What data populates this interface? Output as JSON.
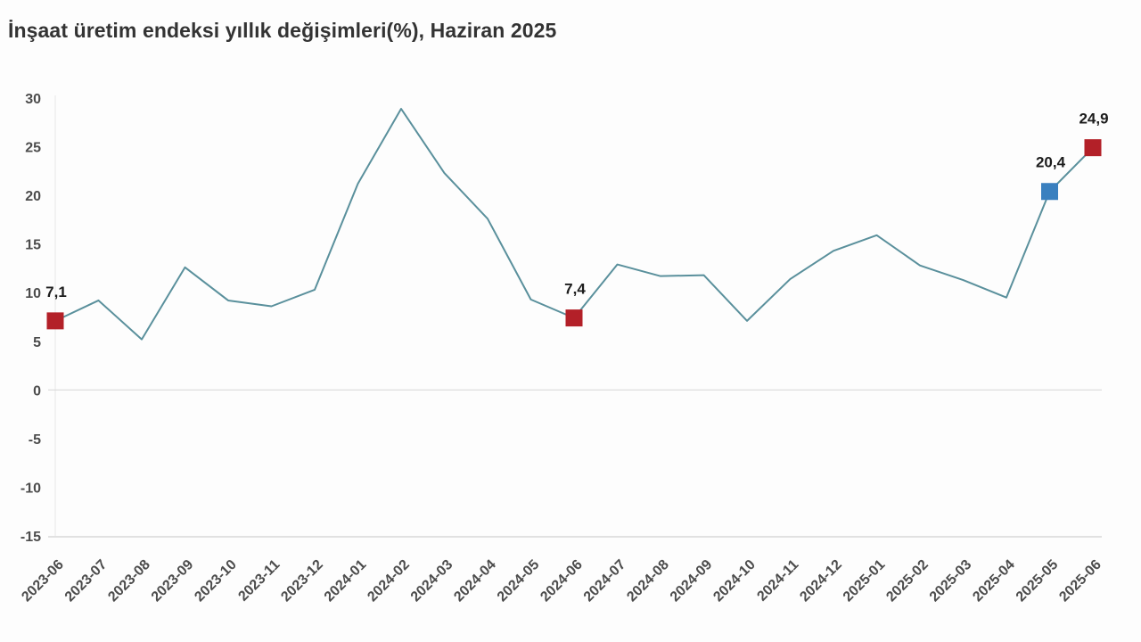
{
  "chart_data": {
    "type": "line",
    "title": "İnşaat üretim endeksi yıllık değişimleri(%), Haziran 2025",
    "xlabel": "",
    "ylabel": "",
    "x": [
      "2023-06",
      "2023-07",
      "2023-08",
      "2023-09",
      "2023-10",
      "2023-11",
      "2023-12",
      "2024-01",
      "2024-02",
      "2024-03",
      "2024-04",
      "2024-05",
      "2024-06",
      "2024-07",
      "2024-08",
      "2024-09",
      "2024-10",
      "2024-11",
      "2024-12",
      "2025-01",
      "2025-02",
      "2025-03",
      "2025-04",
      "2025-05",
      "2025-06"
    ],
    "values": [
      7.1,
      9.2,
      5.2,
      12.6,
      9.2,
      8.6,
      10.3,
      21.2,
      28.9,
      22.3,
      17.6,
      9.3,
      7.4,
      12.9,
      11.7,
      11.8,
      7.1,
      11.4,
      14.3,
      15.9,
      12.8,
      11.3,
      9.5,
      20.4,
      24.9
    ],
    "ylim": [
      -15,
      30
    ],
    "yticks": [
      30,
      25,
      20,
      15,
      10,
      5,
      0,
      -5,
      -10,
      -15
    ],
    "grid": "horizontal line at 0 and bottom axis only",
    "legend": "none",
    "marked_points": [
      {
        "x": "2023-06",
        "value": 7.1,
        "label": "7,1",
        "color": "#b32028"
      },
      {
        "x": "2024-06",
        "value": 7.4,
        "label": "7,4",
        "color": "#b32028"
      },
      {
        "x": "2025-05",
        "value": 20.4,
        "label": "20,4",
        "color": "#3a80bf"
      },
      {
        "x": "2025-06",
        "value": 24.9,
        "label": "24,9",
        "color": "#b32028"
      }
    ],
    "colors": {
      "line": "#5a909c",
      "marker_red": "#b32028",
      "marker_blue": "#3a80bf",
      "tick_text": "#4c4c4c",
      "point_label_text": "#1c1c1c",
      "title_text": "#333333",
      "axis_line": "#dadada"
    }
  }
}
